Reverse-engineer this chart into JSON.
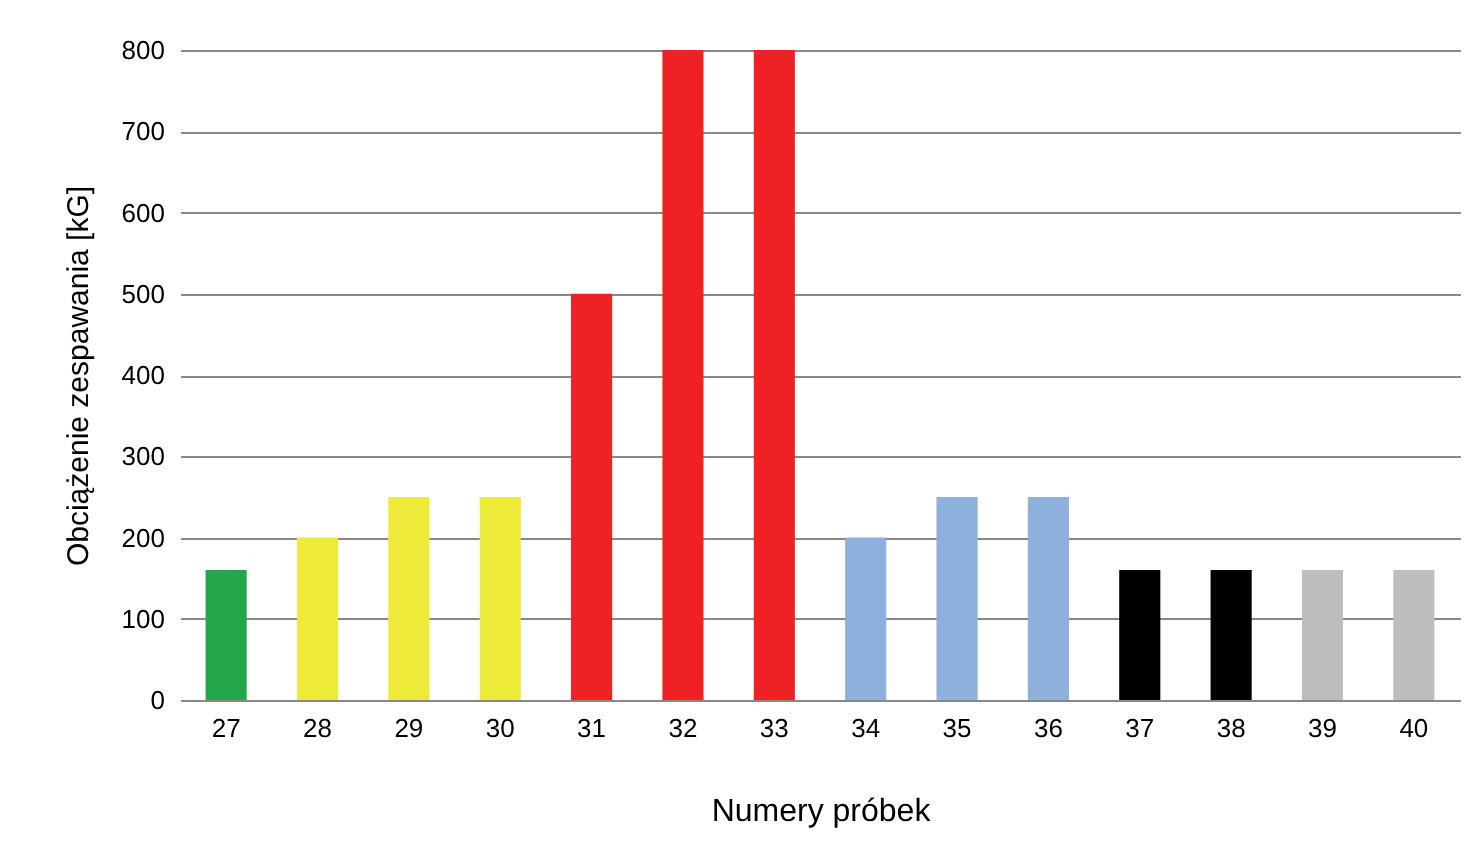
{
  "chart_data": {
    "type": "bar",
    "xlabel": "Numery próbek",
    "ylabel": "Obciążenie zespawania [kG]",
    "categories": [
      "27",
      "28",
      "29",
      "30",
      "31",
      "32",
      "33",
      "34",
      "35",
      "36",
      "37",
      "38",
      "39",
      "40"
    ],
    "values": [
      160,
      200,
      250,
      250,
      500,
      800,
      800,
      200,
      250,
      250,
      160,
      160,
      160,
      160
    ],
    "colors": [
      "#22a84a",
      "#eeea3a",
      "#eeea3a",
      "#eeea3a",
      "#ee2224",
      "#ee2224",
      "#ee2224",
      "#8eb0dc",
      "#8eb0dc",
      "#8eb0dc",
      "#000000",
      "#000000",
      "#bdbdbd",
      "#bdbdbd"
    ],
    "ylim": [
      0,
      800
    ],
    "yticks": [
      0,
      100,
      200,
      300,
      400,
      500,
      600,
      700,
      800
    ],
    "grid": true
  }
}
